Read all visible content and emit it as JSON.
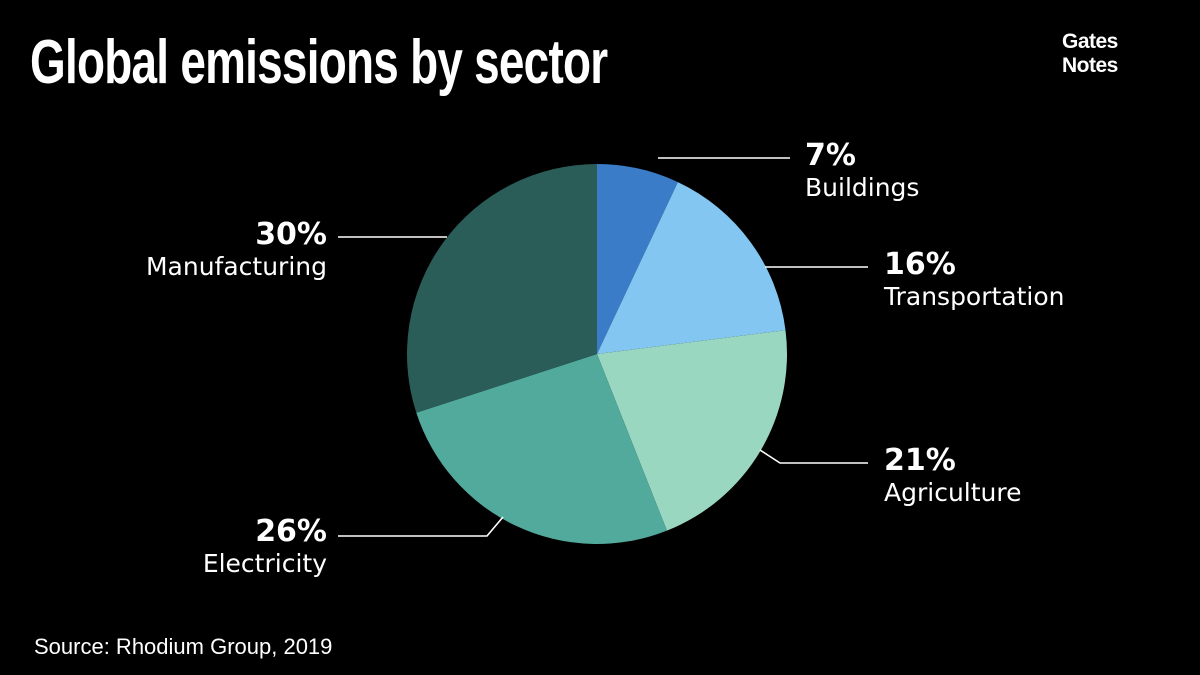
{
  "title": "Global emissions by sector",
  "logo": {
    "line1": "Gates",
    "line2": "Notes"
  },
  "source": "Source: Rhodium Group, 2019",
  "chart_data": {
    "type": "pie",
    "title": "Global emissions by sector",
    "slices": [
      {
        "label": "Buildings",
        "value": 7,
        "value_label": "7%",
        "color": "#3a7cc7"
      },
      {
        "label": "Transportation",
        "value": 16,
        "value_label": "16%",
        "color": "#82c6f1"
      },
      {
        "label": "Agriculture",
        "value": 21,
        "value_label": "21%",
        "color": "#9ad7c1"
      },
      {
        "label": "Electricity",
        "value": 26,
        "value_label": "26%",
        "color": "#51aa9b"
      },
      {
        "label": "Manufacturing",
        "value": 30,
        "value_label": "30%",
        "color": "#2a5d58"
      }
    ],
    "start": "12 o'clock",
    "direction": "clockwise"
  }
}
